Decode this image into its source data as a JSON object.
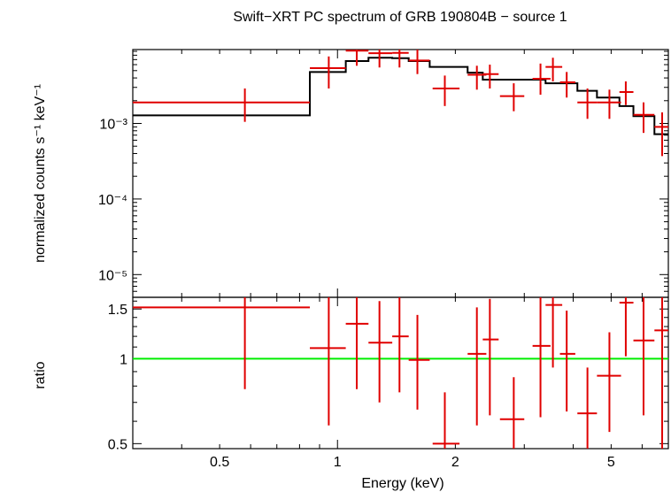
{
  "chart_data": [
    {
      "type": "scatter",
      "panel": "spectrum",
      "title": "Swift−XRT PC spectrum of GRB 190804B − source 1",
      "ylabel": "normalized counts s⁻¹ keV⁻¹",
      "xscale": "log",
      "yscale": "log",
      "xlim": [
        0.3,
        7.0
      ],
      "ylim": [
        5e-06,
        0.0095
      ],
      "y_ticks": [
        {
          "value": 0.001,
          "label": "10⁻³"
        },
        {
          "value": 0.0001,
          "label": "10⁻⁴"
        },
        {
          "value": 1e-05,
          "label": "10⁻⁵"
        }
      ],
      "series": [
        {
          "kind": "data",
          "color": "#e00000",
          "points": [
            {
              "x": 0.58,
              "xlo": 0.3,
              "xhi": 0.85,
              "y": 0.0019,
              "ylo": 0.00105,
              "yhi": 0.0029
            },
            {
              "x": 0.95,
              "xlo": 0.85,
              "xhi": 1.05,
              "y": 0.0054,
              "ylo": 0.0029,
              "yhi": 0.0077
            },
            {
              "x": 1.12,
              "xlo": 1.05,
              "xhi": 1.2,
              "y": 0.0092,
              "ylo": 0.0058,
              "yhi": 0.0095
            },
            {
              "x": 1.28,
              "xlo": 1.2,
              "xhi": 1.38,
              "y": 0.0085,
              "ylo": 0.0055,
              "yhi": 0.0095
            },
            {
              "x": 1.44,
              "xlo": 1.38,
              "xhi": 1.52,
              "y": 0.0086,
              "ylo": 0.0055,
              "yhi": 0.0095
            },
            {
              "x": 1.6,
              "xlo": 1.52,
              "xhi": 1.72,
              "y": 0.0068,
              "ylo": 0.0045,
              "yhi": 0.0095
            },
            {
              "x": 1.88,
              "xlo": 1.75,
              "xhi": 2.05,
              "y": 0.0029,
              "ylo": 0.0017,
              "yhi": 0.0043
            },
            {
              "x": 2.27,
              "xlo": 2.15,
              "xhi": 2.4,
              "y": 0.0044,
              "ylo": 0.0028,
              "yhi": 0.0058
            },
            {
              "x": 2.45,
              "xlo": 2.35,
              "xhi": 2.58,
              "y": 0.0045,
              "ylo": 0.0029,
              "yhi": 0.006
            },
            {
              "x": 2.82,
              "xlo": 2.6,
              "xhi": 3.0,
              "y": 0.0023,
              "ylo": 0.00145,
              "yhi": 0.0034
            },
            {
              "x": 3.3,
              "xlo": 3.15,
              "xhi": 3.5,
              "y": 0.0039,
              "ylo": 0.0024,
              "yhi": 0.0062
            },
            {
              "x": 3.55,
              "xlo": 3.4,
              "xhi": 3.75,
              "y": 0.0056,
              "ylo": 0.0036,
              "yhi": 0.0074
            },
            {
              "x": 3.85,
              "xlo": 3.7,
              "xhi": 4.05,
              "y": 0.0035,
              "ylo": 0.0022,
              "yhi": 0.0048
            },
            {
              "x": 4.35,
              "xlo": 4.1,
              "xhi": 4.6,
              "y": 0.0019,
              "ylo": 0.00115,
              "yhi": 0.0029
            },
            {
              "x": 4.95,
              "xlo": 4.6,
              "xhi": 5.3,
              "y": 0.0019,
              "ylo": 0.00115,
              "yhi": 0.0028
            },
            {
              "x": 5.45,
              "xlo": 5.25,
              "xhi": 5.7,
              "y": 0.0026,
              "ylo": 0.00175,
              "yhi": 0.0036
            },
            {
              "x": 6.05,
              "xlo": 5.7,
              "xhi": 6.45,
              "y": 0.0013,
              "ylo": 0.00075,
              "yhi": 0.0019
            },
            {
              "x": 6.75,
              "xlo": 6.45,
              "xhi": 7.0,
              "y": 0.0009,
              "ylo": 0.00037,
              "yhi": 0.0014
            }
          ]
        },
        {
          "kind": "model",
          "color": "#000000",
          "steps": [
            {
              "xlo": 0.3,
              "xhi": 0.85,
              "y": 0.00128
            },
            {
              "xlo": 0.85,
              "xhi": 1.05,
              "y": 0.0048
            },
            {
              "xlo": 1.05,
              "xhi": 1.2,
              "y": 0.0067
            },
            {
              "xlo": 1.2,
              "xhi": 1.38,
              "y": 0.0074
            },
            {
              "xlo": 1.38,
              "xhi": 1.52,
              "y": 0.0073
            },
            {
              "xlo": 1.52,
              "xhi": 1.72,
              "y": 0.0067
            },
            {
              "xlo": 1.72,
              "xhi": 2.15,
              "y": 0.0056
            },
            {
              "xlo": 2.15,
              "xhi": 2.35,
              "y": 0.0047
            },
            {
              "xlo": 2.35,
              "xhi": 3.4,
              "y": 0.0038
            },
            {
              "xlo": 3.4,
              "xhi": 4.1,
              "y": 0.0034
            },
            {
              "xlo": 4.1,
              "xhi": 4.6,
              "y": 0.0027
            },
            {
              "xlo": 4.6,
              "xhi": 5.25,
              "y": 0.0022
            },
            {
              "xlo": 5.25,
              "xhi": 5.7,
              "y": 0.0017
            },
            {
              "xlo": 5.7,
              "xhi": 6.45,
              "y": 0.00125
            },
            {
              "xlo": 6.45,
              "xhi": 7.0,
              "y": 0.00072
            }
          ]
        }
      ]
    },
    {
      "type": "scatter",
      "panel": "ratio",
      "xlabel": "Energy (keV)",
      "ylabel": "ratio",
      "xscale": "log",
      "yscale": "log",
      "xlim": [
        0.3,
        7.0
      ],
      "ylim": [
        0.48,
        1.65
      ],
      "x_ticks": [
        {
          "value": 0.5,
          "label": "0.5"
        },
        {
          "value": 1,
          "label": "1"
        },
        {
          "value": 2,
          "label": "2"
        },
        {
          "value": 5,
          "label": "5"
        }
      ],
      "y_ticks": [
        {
          "value": 0.5,
          "label": "0.5"
        },
        {
          "value": 1,
          "label": "1"
        },
        {
          "value": 1.5,
          "label": "1.5"
        }
      ],
      "reference_line": {
        "y": 1,
        "color": "#00ee00"
      },
      "series": [
        {
          "kind": "data",
          "color": "#e00000",
          "points": [
            {
              "x": 0.58,
              "xlo": 0.3,
              "xhi": 0.85,
              "y": 1.52,
              "ylo": 0.78,
              "yhi": 1.65
            },
            {
              "x": 0.95,
              "xlo": 0.85,
              "xhi": 1.05,
              "y": 1.09,
              "ylo": 0.58,
              "yhi": 1.65
            },
            {
              "x": 1.12,
              "xlo": 1.05,
              "xhi": 1.2,
              "y": 1.33,
              "ylo": 0.78,
              "yhi": 1.65
            },
            {
              "x": 1.28,
              "xlo": 1.2,
              "xhi": 1.38,
              "y": 1.14,
              "ylo": 0.7,
              "yhi": 1.6
            },
            {
              "x": 1.44,
              "xlo": 1.38,
              "xhi": 1.52,
              "y": 1.2,
              "ylo": 0.76,
              "yhi": 1.65
            },
            {
              "x": 1.6,
              "xlo": 1.52,
              "xhi": 1.72,
              "y": 0.99,
              "ylo": 0.66,
              "yhi": 1.43
            },
            {
              "x": 1.88,
              "xlo": 1.75,
              "xhi": 2.05,
              "y": 0.5,
              "ylo": 0.48,
              "yhi": 0.76
            },
            {
              "x": 2.27,
              "xlo": 2.15,
              "xhi": 2.4,
              "y": 1.04,
              "ylo": 0.58,
              "yhi": 1.52
            },
            {
              "x": 2.45,
              "xlo": 2.35,
              "xhi": 2.58,
              "y": 1.17,
              "ylo": 0.63,
              "yhi": 1.63
            },
            {
              "x": 2.82,
              "xlo": 2.6,
              "xhi": 3.0,
              "y": 0.61,
              "ylo": 0.48,
              "yhi": 0.86
            },
            {
              "x": 3.3,
              "xlo": 3.15,
              "xhi": 3.5,
              "y": 1.11,
              "ylo": 0.62,
              "yhi": 1.65
            },
            {
              "x": 3.55,
              "xlo": 3.4,
              "xhi": 3.75,
              "y": 1.55,
              "ylo": 0.93,
              "yhi": 1.65
            },
            {
              "x": 3.85,
              "xlo": 3.7,
              "xhi": 4.05,
              "y": 1.04,
              "ylo": 0.65,
              "yhi": 1.48
            },
            {
              "x": 4.35,
              "xlo": 4.1,
              "xhi": 4.6,
              "y": 0.64,
              "ylo": 0.48,
              "yhi": 0.93
            },
            {
              "x": 4.95,
              "xlo": 4.6,
              "xhi": 5.3,
              "y": 0.87,
              "ylo": 0.55,
              "yhi": 1.24
            },
            {
              "x": 5.45,
              "xlo": 5.25,
              "xhi": 5.7,
              "y": 1.58,
              "ylo": 1.02,
              "yhi": 1.65
            },
            {
              "x": 6.05,
              "xlo": 5.7,
              "xhi": 6.45,
              "y": 1.16,
              "ylo": 0.63,
              "yhi": 1.65
            },
            {
              "x": 6.75,
              "xlo": 6.45,
              "xhi": 7.0,
              "y": 1.26,
              "ylo": 0.48,
              "yhi": 1.65
            }
          ]
        }
      ]
    }
  ]
}
